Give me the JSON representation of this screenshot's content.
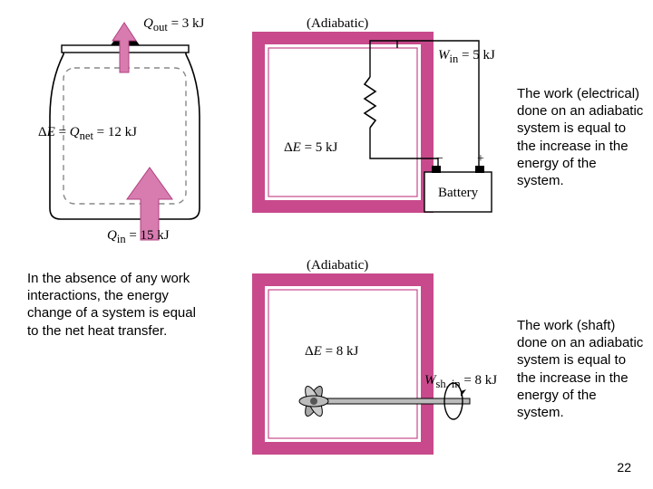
{
  "page_number": "22",
  "colors": {
    "magenta_dark": "#c84a8c",
    "magenta_light": "#e8a8cc",
    "magenta_stroke": "#b04080",
    "vessel_stroke": "#000000",
    "dashed_stroke": "#888888",
    "arrow_fill": "#d87cb0",
    "arrow_fill_dark": "#c05c98",
    "wire_stroke": "#000000",
    "resistor_stroke": "#000000",
    "battery_fill": "#dddddd",
    "gray_fill": "#aaaaaa",
    "white": "#ffffff"
  },
  "fig1": {
    "q_out": "Q_out = 3 kJ",
    "q_out_html": "<i>Q</i><sub>out</sub> = 3 kJ",
    "delta_e_html": "Δ<i>E</i> = <i>Q</i><sub>net</sub> = 12 kJ",
    "q_in_html": "<i>Q</i><sub>in</sub> = 15 kJ"
  },
  "fig2": {
    "adiabatic": "(Adiabatic)",
    "w_in_html": "<i>W</i><sub>in</sub> = 5 kJ",
    "delta_e_html": "Δ<i>E</i> = 5 kJ",
    "battery": "Battery",
    "minus": "−",
    "plus": "+"
  },
  "fig3": {
    "adiabatic": "(Adiabatic)",
    "delta_e_html": "Δ<i>E</i> = 8 kJ",
    "w_sh_html": "<i>W</i><sub>sh, in</sub> = 8 kJ"
  },
  "captions": {
    "c1": "In the absence of any work interactions, the energy change of a system is equal to the net heat transfer.",
    "c2": "The work (electrical) done on an adiabatic system is equal to the increase in the energy of the system.",
    "c3": "The work (shaft) done on an adiabatic system is equal to the increase in the energy of the system."
  },
  "style": {
    "caption_fontsize": 15,
    "label_fontsize": 15,
    "stroke_width_vessel": 1.6,
    "dash": "6,5"
  }
}
